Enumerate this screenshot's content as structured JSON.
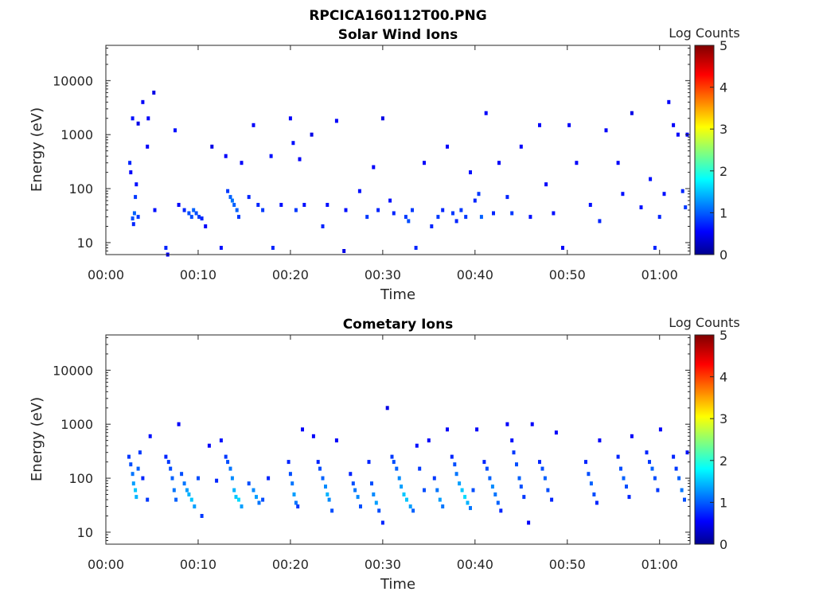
{
  "figure_title": "RPCICA160112T00.PNG",
  "chart_data": [
    {
      "type": "heatmap",
      "title": "Solar Wind Ions",
      "xlabel": "Time",
      "ylabel": "Energy (eV)",
      "x_ticks": [
        "00:00",
        "00:10",
        "00:20",
        "00:30",
        "00:40",
        "00:50",
        "01:00"
      ],
      "x_range_minutes": [
        0,
        63.3
      ],
      "y_scale": "log",
      "y_ticks": [
        10,
        100,
        1000,
        10000
      ],
      "y_range": [
        6,
        45000
      ],
      "colorbar": {
        "label": "Log Counts",
        "ticks": [
          0,
          1,
          2,
          3,
          4,
          5
        ],
        "range": [
          0,
          5
        ],
        "colormap": "jet"
      },
      "grid": false,
      "cells": [
        [
          2.6,
          300,
          0.8
        ],
        [
          2.7,
          200,
          0.6
        ],
        [
          2.9,
          2000,
          0.7
        ],
        [
          2.9,
          28,
          1.0
        ],
        [
          3.0,
          22,
          0.8
        ],
        [
          3.1,
          35,
          1.1
        ],
        [
          3.2,
          70,
          0.9
        ],
        [
          3.3,
          120,
          0.7
        ],
        [
          3.5,
          30,
          0.9
        ],
        [
          3.5,
          1600,
          0.5
        ],
        [
          4.0,
          4000,
          0.6
        ],
        [
          4.5,
          600,
          0.6
        ],
        [
          4.6,
          2000,
          0.6
        ],
        [
          5.2,
          6000,
          0.5
        ],
        [
          5.3,
          40,
          0.7
        ],
        [
          6.5,
          8,
          0.8
        ],
        [
          6.7,
          6,
          0.6
        ],
        [
          7.5,
          1200,
          0.7
        ],
        [
          7.9,
          50,
          0.6
        ],
        [
          8.5,
          40,
          0.8
        ],
        [
          9.0,
          35,
          1.0
        ],
        [
          9.3,
          30,
          1.0
        ],
        [
          9.5,
          40,
          1.1
        ],
        [
          9.8,
          35,
          1.0
        ],
        [
          10.1,
          30,
          0.9
        ],
        [
          10.4,
          28,
          0.8
        ],
        [
          10.8,
          20,
          0.6
        ],
        [
          11.5,
          600,
          0.5
        ],
        [
          12.5,
          8,
          0.7
        ],
        [
          13.0,
          400,
          0.6
        ],
        [
          13.2,
          90,
          0.9
        ],
        [
          13.5,
          70,
          1.1
        ],
        [
          13.7,
          60,
          1.2
        ],
        [
          13.9,
          50,
          1.1
        ],
        [
          14.2,
          40,
          1.1
        ],
        [
          14.4,
          30,
          0.9
        ],
        [
          14.7,
          300,
          0.6
        ],
        [
          15.5,
          70,
          0.8
        ],
        [
          16.0,
          1500,
          0.6
        ],
        [
          16.5,
          50,
          0.8
        ],
        [
          17.0,
          40,
          0.9
        ],
        [
          17.9,
          400,
          0.7
        ],
        [
          18.1,
          8,
          0.8
        ],
        [
          19.0,
          50,
          0.7
        ],
        [
          20.0,
          2000,
          0.6
        ],
        [
          20.3,
          700,
          0.7
        ],
        [
          20.6,
          40,
          0.9
        ],
        [
          21.0,
          350,
          0.6
        ],
        [
          21.5,
          50,
          0.7
        ],
        [
          22.3,
          1000,
          0.5
        ],
        [
          23.5,
          20,
          0.8
        ],
        [
          24.0,
          50,
          0.7
        ],
        [
          25.0,
          1800,
          0.6
        ],
        [
          25.8,
          7,
          0.5
        ],
        [
          26.0,
          40,
          0.7
        ],
        [
          27.5,
          90,
          0.7
        ],
        [
          28.3,
          30,
          0.9
        ],
        [
          29.0,
          250,
          0.6
        ],
        [
          29.5,
          40,
          0.8
        ],
        [
          30.0,
          2000,
          0.5
        ],
        [
          30.8,
          60,
          0.7
        ],
        [
          31.2,
          35,
          0.8
        ],
        [
          32.5,
          30,
          0.9
        ],
        [
          32.8,
          25,
          1.0
        ],
        [
          33.2,
          40,
          0.9
        ],
        [
          33.6,
          8,
          0.8
        ],
        [
          34.5,
          300,
          0.6
        ],
        [
          35.3,
          20,
          0.8
        ],
        [
          36.0,
          30,
          0.9
        ],
        [
          36.5,
          40,
          0.8
        ],
        [
          37.0,
          600,
          0.6
        ],
        [
          37.6,
          35,
          0.9
        ],
        [
          38.0,
          25,
          0.8
        ],
        [
          38.5,
          40,
          0.9
        ],
        [
          39.0,
          30,
          0.9
        ],
        [
          39.5,
          200,
          0.7
        ],
        [
          40.0,
          60,
          0.8
        ],
        [
          40.4,
          80,
          0.9
        ],
        [
          40.7,
          30,
          1.1
        ],
        [
          41.2,
          2500,
          0.6
        ],
        [
          42.0,
          35,
          0.8
        ],
        [
          42.6,
          300,
          0.6
        ],
        [
          43.5,
          70,
          0.8
        ],
        [
          44.0,
          35,
          0.9
        ],
        [
          45.0,
          600,
          0.6
        ],
        [
          46.0,
          30,
          0.7
        ],
        [
          47.0,
          1500,
          0.6
        ],
        [
          47.7,
          120,
          0.6
        ],
        [
          48.5,
          35,
          0.7
        ],
        [
          49.5,
          8,
          0.6
        ],
        [
          50.2,
          1500,
          0.6
        ],
        [
          51.0,
          300,
          0.6
        ],
        [
          52.5,
          50,
          0.7
        ],
        [
          53.5,
          25,
          0.8
        ],
        [
          54.2,
          1200,
          0.6
        ],
        [
          55.5,
          300,
          0.6
        ],
        [
          56.0,
          80,
          0.7
        ],
        [
          57.0,
          2500,
          0.5
        ],
        [
          58.0,
          45,
          0.7
        ],
        [
          59.0,
          150,
          0.7
        ],
        [
          59.5,
          8,
          0.8
        ],
        [
          60.0,
          30,
          0.8
        ],
        [
          60.5,
          80,
          0.7
        ],
        [
          61.0,
          4000,
          0.6
        ],
        [
          61.5,
          1500,
          0.6
        ],
        [
          62.0,
          1000,
          0.6
        ],
        [
          62.5,
          90,
          0.8
        ],
        [
          62.8,
          45,
          0.9
        ],
        [
          63.0,
          1000,
          0.6
        ]
      ]
    },
    {
      "type": "heatmap",
      "title": "Cometary Ions",
      "xlabel": "Time",
      "ylabel": "Energy (eV)",
      "x_ticks": [
        "00:00",
        "00:10",
        "00:20",
        "00:30",
        "00:40",
        "00:50",
        "01:00"
      ],
      "x_range_minutes": [
        0,
        63.3
      ],
      "y_scale": "log",
      "y_ticks": [
        10,
        100,
        1000,
        10000
      ],
      "y_range": [
        6,
        45000
      ],
      "colorbar": {
        "label": "Log Counts",
        "ticks": [
          0,
          1,
          2,
          3,
          4,
          5
        ],
        "range": [
          0,
          5
        ],
        "colormap": "jet"
      },
      "grid": false,
      "cells": [
        [
          2.5,
          250,
          0.9
        ],
        [
          2.7,
          180,
          1.0
        ],
        [
          2.9,
          120,
          1.2
        ],
        [
          3.0,
          80,
          1.4
        ],
        [
          3.2,
          60,
          1.6
        ],
        [
          3.3,
          45,
          1.5
        ],
        [
          3.5,
          150,
          1.1
        ],
        [
          3.7,
          300,
          0.9
        ],
        [
          4.0,
          100,
          0.8
        ],
        [
          4.5,
          40,
          0.9
        ],
        [
          4.8,
          600,
          0.7
        ],
        [
          6.5,
          250,
          0.8
        ],
        [
          6.8,
          200,
          0.9
        ],
        [
          7.0,
          150,
          1.0
        ],
        [
          7.2,
          100,
          1.1
        ],
        [
          7.4,
          60,
          1.2
        ],
        [
          7.6,
          40,
          1.1
        ],
        [
          7.9,
          1000,
          0.6
        ],
        [
          8.2,
          120,
          1.0
        ],
        [
          8.5,
          80,
          1.2
        ],
        [
          8.8,
          60,
          1.4
        ],
        [
          9.0,
          50,
          1.5
        ],
        [
          9.3,
          40,
          1.6
        ],
        [
          9.6,
          30,
          1.4
        ],
        [
          10.0,
          100,
          1.0
        ],
        [
          10.4,
          20,
          0.9
        ],
        [
          11.2,
          400,
          0.6
        ],
        [
          12.0,
          90,
          0.8
        ],
        [
          12.5,
          500,
          0.7
        ],
        [
          13.0,
          250,
          0.9
        ],
        [
          13.2,
          200,
          1.0
        ],
        [
          13.5,
          150,
          1.2
        ],
        [
          13.7,
          100,
          1.3
        ],
        [
          13.9,
          60,
          1.5
        ],
        [
          14.1,
          45,
          1.6
        ],
        [
          14.4,
          40,
          1.7
        ],
        [
          14.7,
          30,
          1.4
        ],
        [
          15.5,
          80,
          1.0
        ],
        [
          16.0,
          60,
          1.3
        ],
        [
          16.3,
          45,
          1.4
        ],
        [
          16.6,
          35,
          1.2
        ],
        [
          17.0,
          40,
          1.0
        ],
        [
          17.6,
          100,
          0.8
        ],
        [
          19.8,
          200,
          0.8
        ],
        [
          20.0,
          120,
          1.0
        ],
        [
          20.2,
          80,
          1.2
        ],
        [
          20.4,
          50,
          1.4
        ],
        [
          20.6,
          35,
          1.2
        ],
        [
          20.8,
          30,
          0.9
        ],
        [
          21.3,
          800,
          0.6
        ],
        [
          22.5,
          600,
          0.6
        ],
        [
          23.0,
          200,
          0.8
        ],
        [
          23.2,
          150,
          1.0
        ],
        [
          23.5,
          100,
          1.1
        ],
        [
          23.8,
          70,
          1.3
        ],
        [
          24.0,
          50,
          1.5
        ],
        [
          24.2,
          40,
          1.3
        ],
        [
          24.5,
          25,
          1.0
        ],
        [
          25.0,
          500,
          0.6
        ],
        [
          26.5,
          120,
          0.8
        ],
        [
          26.8,
          80,
          1.0
        ],
        [
          27.0,
          60,
          1.2
        ],
        [
          27.3,
          45,
          1.3
        ],
        [
          27.6,
          30,
          1.0
        ],
        [
          28.5,
          200,
          0.8
        ],
        [
          28.8,
          80,
          1.0
        ],
        [
          29.0,
          50,
          1.3
        ],
        [
          29.3,
          35,
          1.4
        ],
        [
          29.6,
          25,
          1.0
        ],
        [
          30.0,
          15,
          0.8
        ],
        [
          30.5,
          2000,
          0.5
        ],
        [
          31.0,
          250,
          0.9
        ],
        [
          31.2,
          200,
          1.0
        ],
        [
          31.5,
          150,
          1.1
        ],
        [
          31.8,
          100,
          1.3
        ],
        [
          32.0,
          70,
          1.4
        ],
        [
          32.3,
          50,
          1.6
        ],
        [
          32.6,
          40,
          1.6
        ],
        [
          33.0,
          30,
          1.4
        ],
        [
          33.3,
          25,
          1.1
        ],
        [
          33.7,
          400,
          0.7
        ],
        [
          34.0,
          150,
          0.9
        ],
        [
          34.5,
          60,
          1.0
        ],
        [
          35.0,
          500,
          0.6
        ],
        [
          35.6,
          100,
          0.9
        ],
        [
          35.9,
          60,
          1.2
        ],
        [
          36.2,
          40,
          1.4
        ],
        [
          36.5,
          30,
          1.2
        ],
        [
          37.0,
          800,
          0.6
        ],
        [
          37.5,
          250,
          0.8
        ],
        [
          37.8,
          180,
          1.0
        ],
        [
          38.0,
          120,
          1.2
        ],
        [
          38.3,
          80,
          1.4
        ],
        [
          38.6,
          60,
          1.6
        ],
        [
          38.9,
          45,
          1.7
        ],
        [
          39.2,
          35,
          1.5
        ],
        [
          39.5,
          28,
          1.2
        ],
        [
          39.8,
          60,
          1.0
        ],
        [
          40.2,
          800,
          0.6
        ],
        [
          41.0,
          200,
          0.8
        ],
        [
          41.3,
          150,
          1.0
        ],
        [
          41.6,
          100,
          1.1
        ],
        [
          41.9,
          70,
          1.3
        ],
        [
          42.2,
          50,
          1.2
        ],
        [
          42.5,
          35,
          1.1
        ],
        [
          42.8,
          25,
          0.8
        ],
        [
          43.5,
          1000,
          0.6
        ],
        [
          44.0,
          500,
          0.7
        ],
        [
          44.2,
          300,
          0.9
        ],
        [
          44.5,
          180,
          1.0
        ],
        [
          44.8,
          100,
          1.1
        ],
        [
          45.0,
          70,
          1.0
        ],
        [
          45.3,
          45,
          0.9
        ],
        [
          45.8,
          15,
          0.6
        ],
        [
          46.2,
          1000,
          0.6
        ],
        [
          47.0,
          200,
          0.8
        ],
        [
          47.3,
          150,
          1.0
        ],
        [
          47.6,
          100,
          1.1
        ],
        [
          47.9,
          60,
          1.0
        ],
        [
          48.3,
          40,
          0.8
        ],
        [
          48.8,
          700,
          0.6
        ],
        [
          52.0,
          200,
          0.8
        ],
        [
          52.3,
          120,
          1.0
        ],
        [
          52.6,
          80,
          1.1
        ],
        [
          52.9,
          50,
          1.0
        ],
        [
          53.2,
          35,
          0.8
        ],
        [
          53.5,
          500,
          0.6
        ],
        [
          55.5,
          250,
          0.8
        ],
        [
          55.8,
          150,
          1.0
        ],
        [
          56.1,
          100,
          1.1
        ],
        [
          56.4,
          70,
          1.0
        ],
        [
          56.7,
          45,
          0.8
        ],
        [
          57.0,
          600,
          0.6
        ],
        [
          58.6,
          300,
          0.8
        ],
        [
          58.9,
          200,
          0.9
        ],
        [
          59.2,
          150,
          1.1
        ],
        [
          59.5,
          100,
          1.0
        ],
        [
          59.8,
          60,
          0.9
        ],
        [
          60.1,
          800,
          0.6
        ],
        [
          61.5,
          250,
          0.8
        ],
        [
          61.8,
          150,
          0.9
        ],
        [
          62.1,
          100,
          1.1
        ],
        [
          62.4,
          60,
          1.2
        ],
        [
          62.7,
          40,
          1.0
        ],
        [
          63.0,
          300,
          0.7
        ]
      ]
    }
  ]
}
